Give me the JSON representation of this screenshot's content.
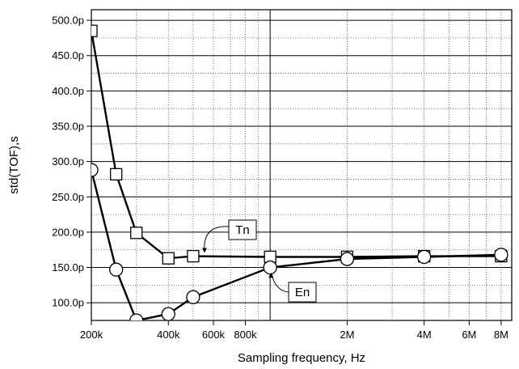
{
  "chart_data": {
    "type": "line",
    "xlabel": "Sampling frequency, Hz",
    "ylabel": "std(TOF),s",
    "x_scale": "log",
    "xlim": [
      200000,
      8800000
    ],
    "ylim": [
      7.5e-11,
      5.15e-10
    ],
    "grid": true,
    "x_ticks": [
      {
        "value": 200000,
        "label": "200k"
      },
      {
        "value": 400000,
        "label": "400k"
      },
      {
        "value": 600000,
        "label": "600k"
      },
      {
        "value": 800000,
        "label": "800k"
      },
      {
        "value": 2000000,
        "label": "2M"
      },
      {
        "value": 4000000,
        "label": "4M"
      },
      {
        "value": 6000000,
        "label": "6M"
      },
      {
        "value": 8000000,
        "label": "8M"
      }
    ],
    "y_ticks": [
      {
        "value": 1e-10,
        "label": "100.0p"
      },
      {
        "value": 1.5e-10,
        "label": "150.0p"
      },
      {
        "value": 2e-10,
        "label": "200.0p"
      },
      {
        "value": 2.5e-10,
        "label": "250.0p"
      },
      {
        "value": 3e-10,
        "label": "300.0p"
      },
      {
        "value": 3.5e-10,
        "label": "350.0p"
      },
      {
        "value": 4e-10,
        "label": "400.0p"
      },
      {
        "value": 4.5e-10,
        "label": "450.0p"
      },
      {
        "value": 5e-10,
        "label": "500.0p"
      }
    ],
    "series": [
      {
        "name": "Tn",
        "marker": "square",
        "x": [
          200000,
          250000,
          300000,
          400000,
          500000,
          1000000,
          2000000,
          4000000,
          8000000
        ],
        "y": [
          4.85e-10,
          2.82e-10,
          1.99e-10,
          1.63e-10,
          1.66e-10,
          1.65e-10,
          1.65e-10,
          1.66e-10,
          1.66e-10
        ]
      },
      {
        "name": "En",
        "marker": "circle",
        "x": [
          200000,
          250000,
          300000,
          400000,
          500000,
          1000000,
          2000000,
          4000000,
          8000000
        ],
        "y": [
          2.88e-10,
          1.47e-10,
          7.5e-11,
          8.4e-11,
          1.08e-10,
          1.5e-10,
          1.62e-10,
          1.65e-10,
          1.68e-10
        ]
      }
    ],
    "annotations": [
      {
        "text": "Tn",
        "series": "Tn",
        "point_x": 550000,
        "point_y": 1.65e-10
      },
      {
        "text": "En",
        "series": "En",
        "point_x": 1000000,
        "point_y": 1.48e-10
      }
    ]
  }
}
